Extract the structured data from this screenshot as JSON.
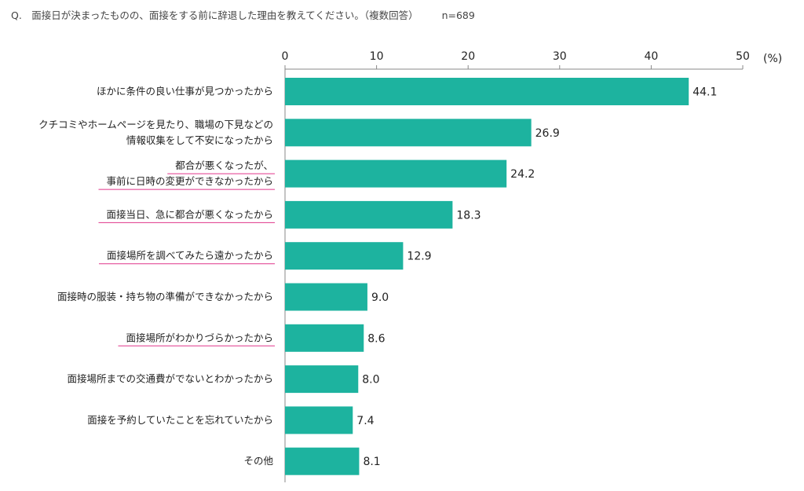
{
  "question": {
    "text": "Q.　面接日が決まったものの、面接をする前に辞退した理由を教えてください。（複数回答）",
    "n": "n=689"
  },
  "colors": {
    "bar": "#1db39f",
    "underline": "#e0358a",
    "axis": "#888888"
  },
  "chart_data": {
    "type": "bar",
    "orientation": "horizontal",
    "xlim": [
      0,
      50
    ],
    "xticks": [
      0,
      10,
      20,
      30,
      40,
      50
    ],
    "unit": "(%)",
    "grid": false,
    "categories": [
      {
        "lines": [
          "ほかに条件の良い仕事が見つかったから"
        ],
        "underline": false
      },
      {
        "lines": [
          "クチコミやホームページを見たり、職場の下見などの",
          "情報収集をして不安になったから"
        ],
        "underline": false
      },
      {
        "lines": [
          "都合が悪くなったが、",
          "事前に日時の変更ができなかったから"
        ],
        "underline": true
      },
      {
        "lines": [
          "面接当日、急に都合が悪くなったから"
        ],
        "underline": true
      },
      {
        "lines": [
          "面接場所を調べてみたら遠かったから"
        ],
        "underline": true
      },
      {
        "lines": [
          "面接時の服装・持ち物の準備ができなかったから"
        ],
        "underline": false
      },
      {
        "lines": [
          "面接場所がわかりづらかったから"
        ],
        "underline": true
      },
      {
        "lines": [
          "面接場所までの交通費がでないとわかったから"
        ],
        "underline": false
      },
      {
        "lines": [
          "面接を予約していたことを忘れていたから"
        ],
        "underline": false
      },
      {
        "lines": [
          "その他"
        ],
        "underline": false
      }
    ],
    "values": [
      44.1,
      26.9,
      24.2,
      18.3,
      12.9,
      9.0,
      8.6,
      8.0,
      7.4,
      8.1
    ],
    "value_labels": [
      "44.1",
      "26.9",
      "24.2",
      "18.3",
      "12.9",
      "9.0",
      "8.6",
      "8.0",
      "7.4",
      "8.1"
    ]
  }
}
